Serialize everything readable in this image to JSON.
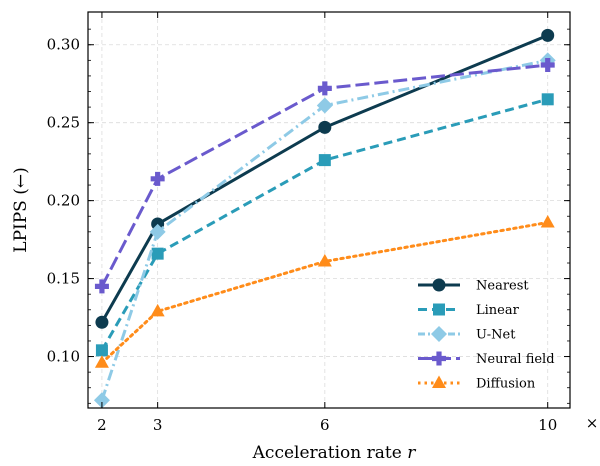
{
  "chart_data": {
    "type": "line",
    "xlabel": "Acceleration rate",
    "xlabel_var": "r",
    "x_unit_suffix": "×",
    "ylabel": "LPIPS (←)",
    "x_ticks": [
      2,
      3,
      6,
      10
    ],
    "x_tick_labels": [
      "2",
      "3",
      "6",
      "10"
    ],
    "y_ticks": [
      0.1,
      0.15,
      0.2,
      0.25,
      0.3
    ],
    "y_tick_labels": [
      "0.10",
      "0.15",
      "0.20",
      "0.25",
      "0.30"
    ],
    "xlim": [
      1.75,
      10.4
    ],
    "ylim": [
      0.067,
      0.321
    ],
    "grid": true,
    "legend_position": "lower-right",
    "x": [
      2,
      3,
      6,
      10
    ],
    "series": [
      {
        "name": "Nearest",
        "values": [
          0.122,
          0.185,
          0.247,
          0.306
        ],
        "color": "#0d3b4f",
        "dash": "solid",
        "marker": "circle"
      },
      {
        "name": "Linear",
        "values": [
          0.104,
          0.166,
          0.226,
          0.265
        ],
        "color": "#2a9cb8",
        "dash": "dashed",
        "marker": "square"
      },
      {
        "name": "U-Net",
        "values": [
          0.072,
          0.18,
          0.261,
          0.29
        ],
        "color": "#8ecae6",
        "dash": "dashdot",
        "marker": "diamond"
      },
      {
        "name": "Neural field",
        "values": [
          0.145,
          0.214,
          0.272,
          0.287
        ],
        "color": "#6a5acd",
        "dash": "longdash",
        "marker": "plus"
      },
      {
        "name": "Diffusion",
        "values": [
          0.096,
          0.129,
          0.161,
          0.186
        ],
        "color": "#ff8c1a",
        "dash": "dotted",
        "marker": "triangle"
      }
    ]
  }
}
